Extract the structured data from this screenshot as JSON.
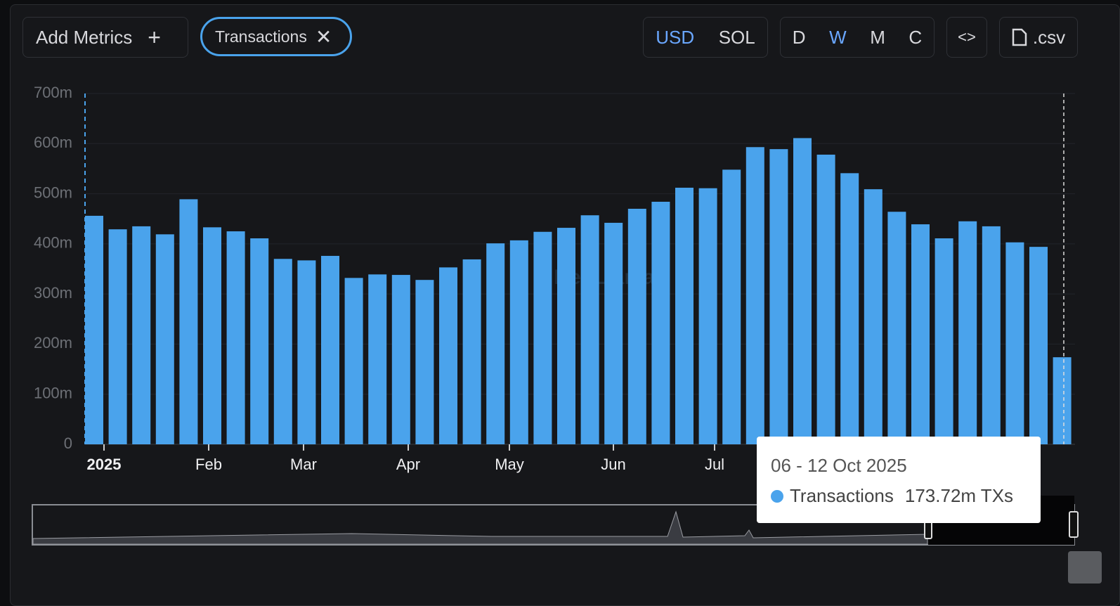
{
  "toolbar": {
    "add": "Add Metrics",
    "metric": "Transactions",
    "currency": [
      "USD",
      "SOL"
    ],
    "periods": [
      "D",
      "W",
      "M",
      "C"
    ],
    "csv": ".csv"
  },
  "watermark": "DefiLlama",
  "chart_data": {
    "type": "bar",
    "color": "#4aa3ec",
    "grid": true,
    "categories": [
      null,
      null,
      null,
      null,
      null,
      null,
      null,
      null,
      null,
      null,
      null,
      null,
      null,
      null,
      null,
      null,
      null,
      null,
      null,
      null,
      null,
      null,
      null,
      null,
      null,
      null,
      null,
      null,
      null,
      null,
      null,
      null,
      null,
      null,
      null,
      null,
      null,
      null,
      null,
      null,
      null,
      null
    ],
    "x_labels": [
      "2025",
      "Feb",
      "Mar",
      "Apr",
      "May",
      "Jun",
      "Jul"
    ],
    "values": [
      456,
      429,
      435,
      419,
      489,
      433,
      425,
      411,
      370,
      367,
      376,
      332,
      339,
      338,
      328,
      353,
      369,
      401,
      407,
      424,
      432,
      457,
      442,
      470,
      484,
      512,
      511,
      548,
      593,
      589,
      611,
      578,
      541,
      509,
      464,
      439,
      411,
      445,
      435,
      403,
      394,
      173.72
    ],
    "ylim": [
      0,
      700
    ],
    "yticks": [
      0,
      {
        "value": 100,
        "label": "100m"
      },
      {
        "value": 200,
        "label": "200m"
      },
      {
        "value": 300,
        "label": "300m"
      },
      {
        "value": 400,
        "label": "400m"
      },
      {
        "value": 500,
        "label": "500m"
      },
      {
        "value": 600,
        "label": "600m"
      },
      {
        "value": 700,
        "label": "700m"
      }
    ]
  },
  "tooltip": {
    "date": "06 - 12 Oct 2025",
    "series": "Transactions",
    "value": "173.72m TXs"
  }
}
